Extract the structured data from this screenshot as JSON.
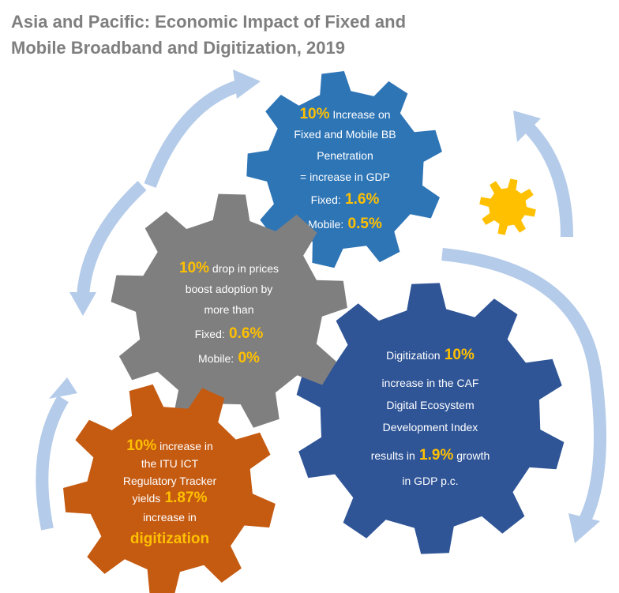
{
  "title": [
    "Asia and Pacific: Economic Impact of Fixed and",
    "Mobile Broadband and Digitization, 2019"
  ],
  "gears": [
    {
      "lines": [
        [
          {
            "accent": "10%"
          },
          {
            "text": "Increase on"
          }
        ],
        [
          {
            "text": "Fixed and Mobile BB"
          }
        ],
        [
          {
            "text": "Penetration"
          }
        ],
        [
          {
            "text": "= increase in GDP"
          }
        ],
        [
          {
            "text": "Fixed:"
          },
          {
            "accent": "1.6%"
          }
        ],
        [
          {
            "text": "Mobile:"
          },
          {
            "accent": "0.5%"
          }
        ]
      ]
    },
    {
      "lines": [
        [
          {
            "accent": "10%"
          },
          {
            "text": "drop in prices"
          }
        ],
        [
          {
            "text": "boost adoption by"
          }
        ],
        [
          {
            "text": "more than"
          }
        ],
        [
          {
            "text": "Fixed:"
          },
          {
            "accent": "0.6%"
          }
        ],
        [
          {
            "text": "Mobile:"
          },
          {
            "accent": "0%"
          }
        ]
      ]
    },
    {
      "lines": [
        [
          {
            "text": "Digitization"
          },
          {
            "accent": "10%"
          }
        ],
        [
          {
            "text": "increase in the CAF"
          }
        ],
        [
          {
            "text": "Digital Ecosystem"
          }
        ],
        [
          {
            "text": "Development Index"
          }
        ],
        [
          {
            "text": "results in"
          },
          {
            "accent": "1.9%"
          },
          {
            "text": "growth"
          }
        ],
        [
          {
            "text": "in GDP p.c."
          }
        ]
      ]
    },
    {
      "lines": [
        [
          {
            "accent": "10%"
          },
          {
            "text": "increase in"
          }
        ],
        [
          {
            "text": "the ITU ICT"
          }
        ],
        [
          {
            "text": "Regulatory Tracker"
          }
        ],
        [
          {
            "text": "yields"
          },
          {
            "accent": "1.87%"
          }
        ],
        [
          {
            "text": "increase in"
          }
        ],
        [
          {
            "accent": "digitization"
          }
        ]
      ]
    }
  ]
}
